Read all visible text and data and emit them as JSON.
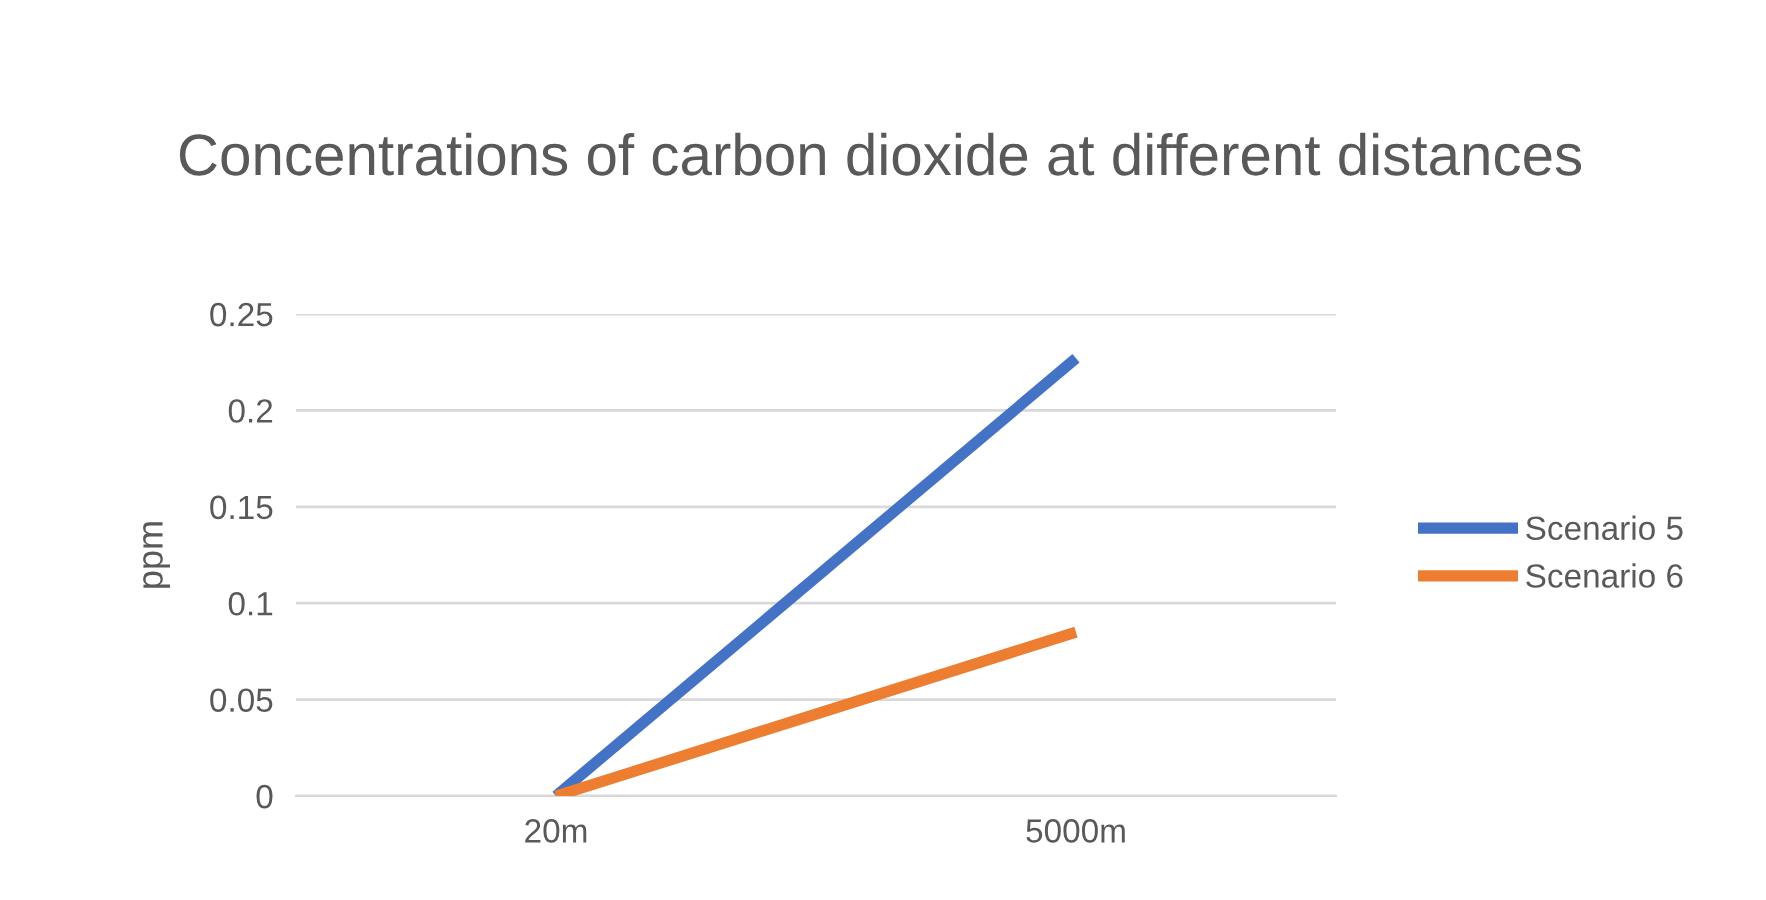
{
  "chart_data": {
    "type": "line",
    "title": "Concentrations of carbon dioxide at different distances",
    "ylabel": "ppm",
    "categories": [
      "20m",
      "5000m"
    ],
    "series": [
      {
        "name": "Scenario 5",
        "color": "#4472c4",
        "values": [
          0,
          0.227
        ]
      },
      {
        "name": "Scenario 6",
        "color": "#ed7d31",
        "values": [
          0,
          0.085
        ]
      }
    ],
    "ylim": [
      0,
      0.25
    ],
    "yticks": [
      0,
      0.05,
      0.1,
      0.15,
      0.2,
      0.25
    ],
    "grid": "y",
    "legend": "right",
    "marker": "none",
    "line_style": "solid"
  }
}
